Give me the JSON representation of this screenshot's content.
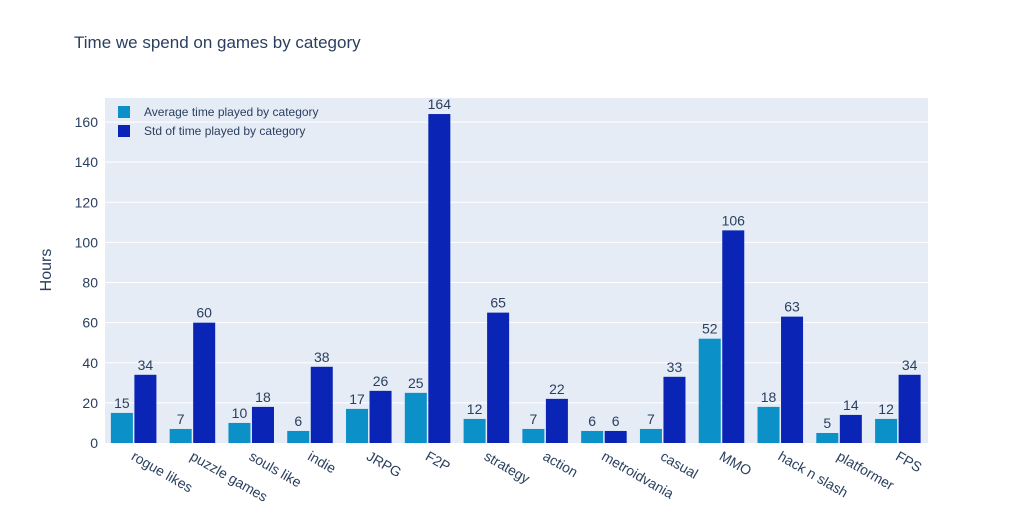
{
  "chart_data": {
    "type": "bar",
    "title": "Time we spend on games by category",
    "xlabel": "",
    "ylabel": "Hours",
    "ylim": [
      0,
      172
    ],
    "yticks": [
      0,
      20,
      40,
      60,
      80,
      100,
      120,
      140,
      160
    ],
    "grid": true,
    "legend_position": "top-left",
    "categories": [
      "rogue likes",
      "puzzle games",
      "souls like",
      "indie",
      "JRPG",
      "F2P",
      "strategy",
      "action",
      "metroidvania",
      "casual",
      "MMO",
      "hack n slash",
      "platformer",
      "FPS"
    ],
    "series": [
      {
        "name": "Average time played by category",
        "color": "#0b91c8",
        "values": [
          15,
          7,
          10,
          6,
          17,
          25,
          12,
          7,
          6,
          7,
          52,
          18,
          5,
          12
        ]
      },
      {
        "name": "Std of time played by category",
        "color": "#0a24b5",
        "values": [
          34,
          60,
          18,
          38,
          26,
          164,
          65,
          22,
          6,
          33,
          106,
          63,
          14,
          34
        ]
      }
    ]
  }
}
